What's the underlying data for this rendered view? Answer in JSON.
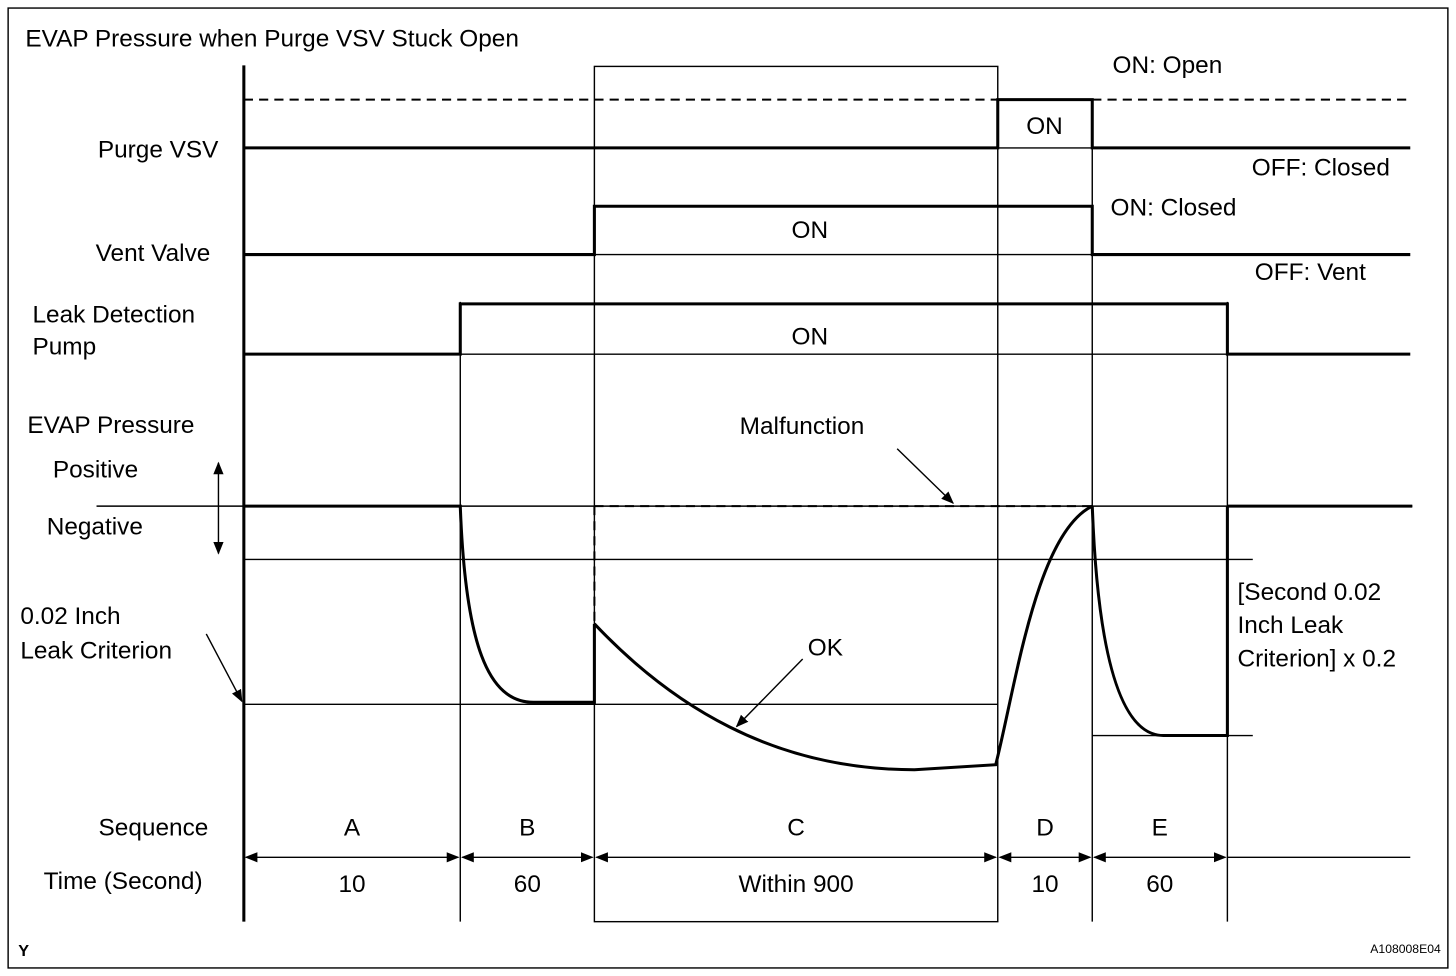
{
  "title": "EVAP Pressure when Purge VSV Stuck Open",
  "signals": [
    {
      "label": [
        "Purge VSV"
      ],
      "on_label": "ON: Open",
      "off_label": "OFF: Closed",
      "state": "ON"
    },
    {
      "label": [
        "Vent Valve"
      ],
      "on_label": "ON: Closed",
      "off_label": "OFF: Vent",
      "state": "ON"
    },
    {
      "label": [
        "Leak Detection",
        "Pump"
      ],
      "state": "ON"
    }
  ],
  "pressure": {
    "label": "EVAP Pressure",
    "positive": "Positive",
    "negative": "Negative",
    "criterion": [
      "0.02 Inch",
      "Leak Criterion"
    ],
    "malfunction": "Malfunction",
    "ok": "OK",
    "second_criterion": [
      "[Second 0.02",
      "Inch Leak",
      "Criterion] x 0.2"
    ]
  },
  "sequence": {
    "label": "Sequence",
    "time_label": "Time (Second)",
    "phases": [
      {
        "name": "A",
        "time": "10"
      },
      {
        "name": "B",
        "time": "60"
      },
      {
        "name": "C",
        "time": "Within 900"
      },
      {
        "name": "D",
        "time": "10"
      },
      {
        "name": "E",
        "time": "60"
      }
    ]
  },
  "footer": {
    "left": "Y",
    "right": "A108008E04"
  }
}
